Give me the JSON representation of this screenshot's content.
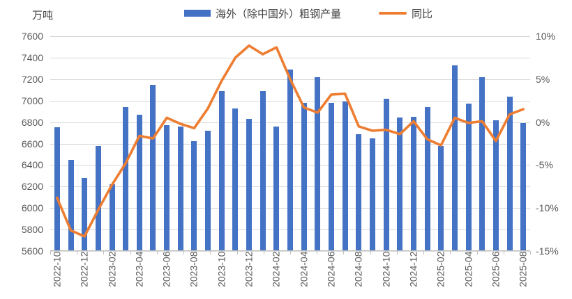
{
  "colors": {
    "bar": "#4472C4",
    "line": "#ED7D31",
    "gridline": "#D9D9D9",
    "axis_line": "#BFBFBF",
    "text": "#595959"
  },
  "chart_data": {
    "type": "bar",
    "title": "",
    "unit_label": "万吨",
    "legend_position": "top",
    "grid": true,
    "x_label_every": 2,
    "categories": [
      "2022-10",
      "2022-11",
      "2022-12",
      "2023-01",
      "2023-02",
      "2023-03",
      "2023-04",
      "2023-05",
      "2023-06",
      "2023-07",
      "2023-08",
      "2023-09",
      "2023-10",
      "2023-11",
      "2023-12",
      "2024-01",
      "2024-02",
      "2024-03",
      "2024-04",
      "2024-05",
      "2024-06",
      "2024-07",
      "2024-08",
      "2024-09",
      "2024-10",
      "2024-11",
      "2024-12",
      "2025-01",
      "2025-02",
      "2025-03",
      "2025-04",
      "2025-05",
      "2025-06",
      "2025-07",
      "2025-08"
    ],
    "x_tick_labels": [
      "2022-10",
      "2022-12",
      "2023-02",
      "2023-04",
      "2023-06",
      "2023-08",
      "2023-10",
      "2023-12",
      "2024-02",
      "2024-04",
      "2024-06",
      "2024-08",
      "2024-10",
      "2024-12",
      "2025-02",
      "2025-04",
      "2025-06",
      "2025-08"
    ],
    "series": [
      {
        "name": "海外（除中国外）粗钢产量",
        "type": "bar",
        "axis": "left",
        "color": "#4472C4",
        "values": [
          6750,
          6450,
          6280,
          6580,
          6220,
          6940,
          6870,
          7150,
          6770,
          6760,
          6620,
          6720,
          7090,
          6930,
          6830,
          7090,
          6760,
          7290,
          6980,
          7220,
          6980,
          6990,
          6690,
          6650,
          7020,
          6840,
          6850,
          6940,
          6580,
          7330,
          6970,
          7220,
          6820,
          7040,
          6790
        ]
      },
      {
        "name": "同比",
        "type": "line",
        "axis": "right",
        "color": "#ED7D31",
        "values": [
          -8.8,
          -12.6,
          -13.3,
          -10.2,
          -7.3,
          -4.8,
          -1.6,
          -1.9,
          0.5,
          -0.2,
          -0.7,
          1.6,
          4.8,
          7.5,
          8.9,
          7.9,
          8.7,
          5.0,
          1.7,
          1.1,
          3.2,
          3.3,
          -0.5,
          -1.0,
          -0.9,
          -1.4,
          0.1,
          -2.0,
          -2.7,
          0.5,
          -0.1,
          0.1,
          -2.2,
          0.9,
          1.5
        ]
      }
    ],
    "left_axis": {
      "label": "万吨",
      "min": 5600,
      "max": 7600,
      "step": 200,
      "ticks": [
        "7600",
        "7400",
        "7200",
        "7000",
        "6800",
        "6600",
        "6400",
        "6200",
        "6000",
        "5800",
        "5600"
      ]
    },
    "right_axis": {
      "min": -15,
      "max": 10,
      "step": 5,
      "format": "percent",
      "ticks": [
        "10%",
        "5%",
        "0%",
        "-5%",
        "-10%",
        "-15%"
      ]
    }
  }
}
